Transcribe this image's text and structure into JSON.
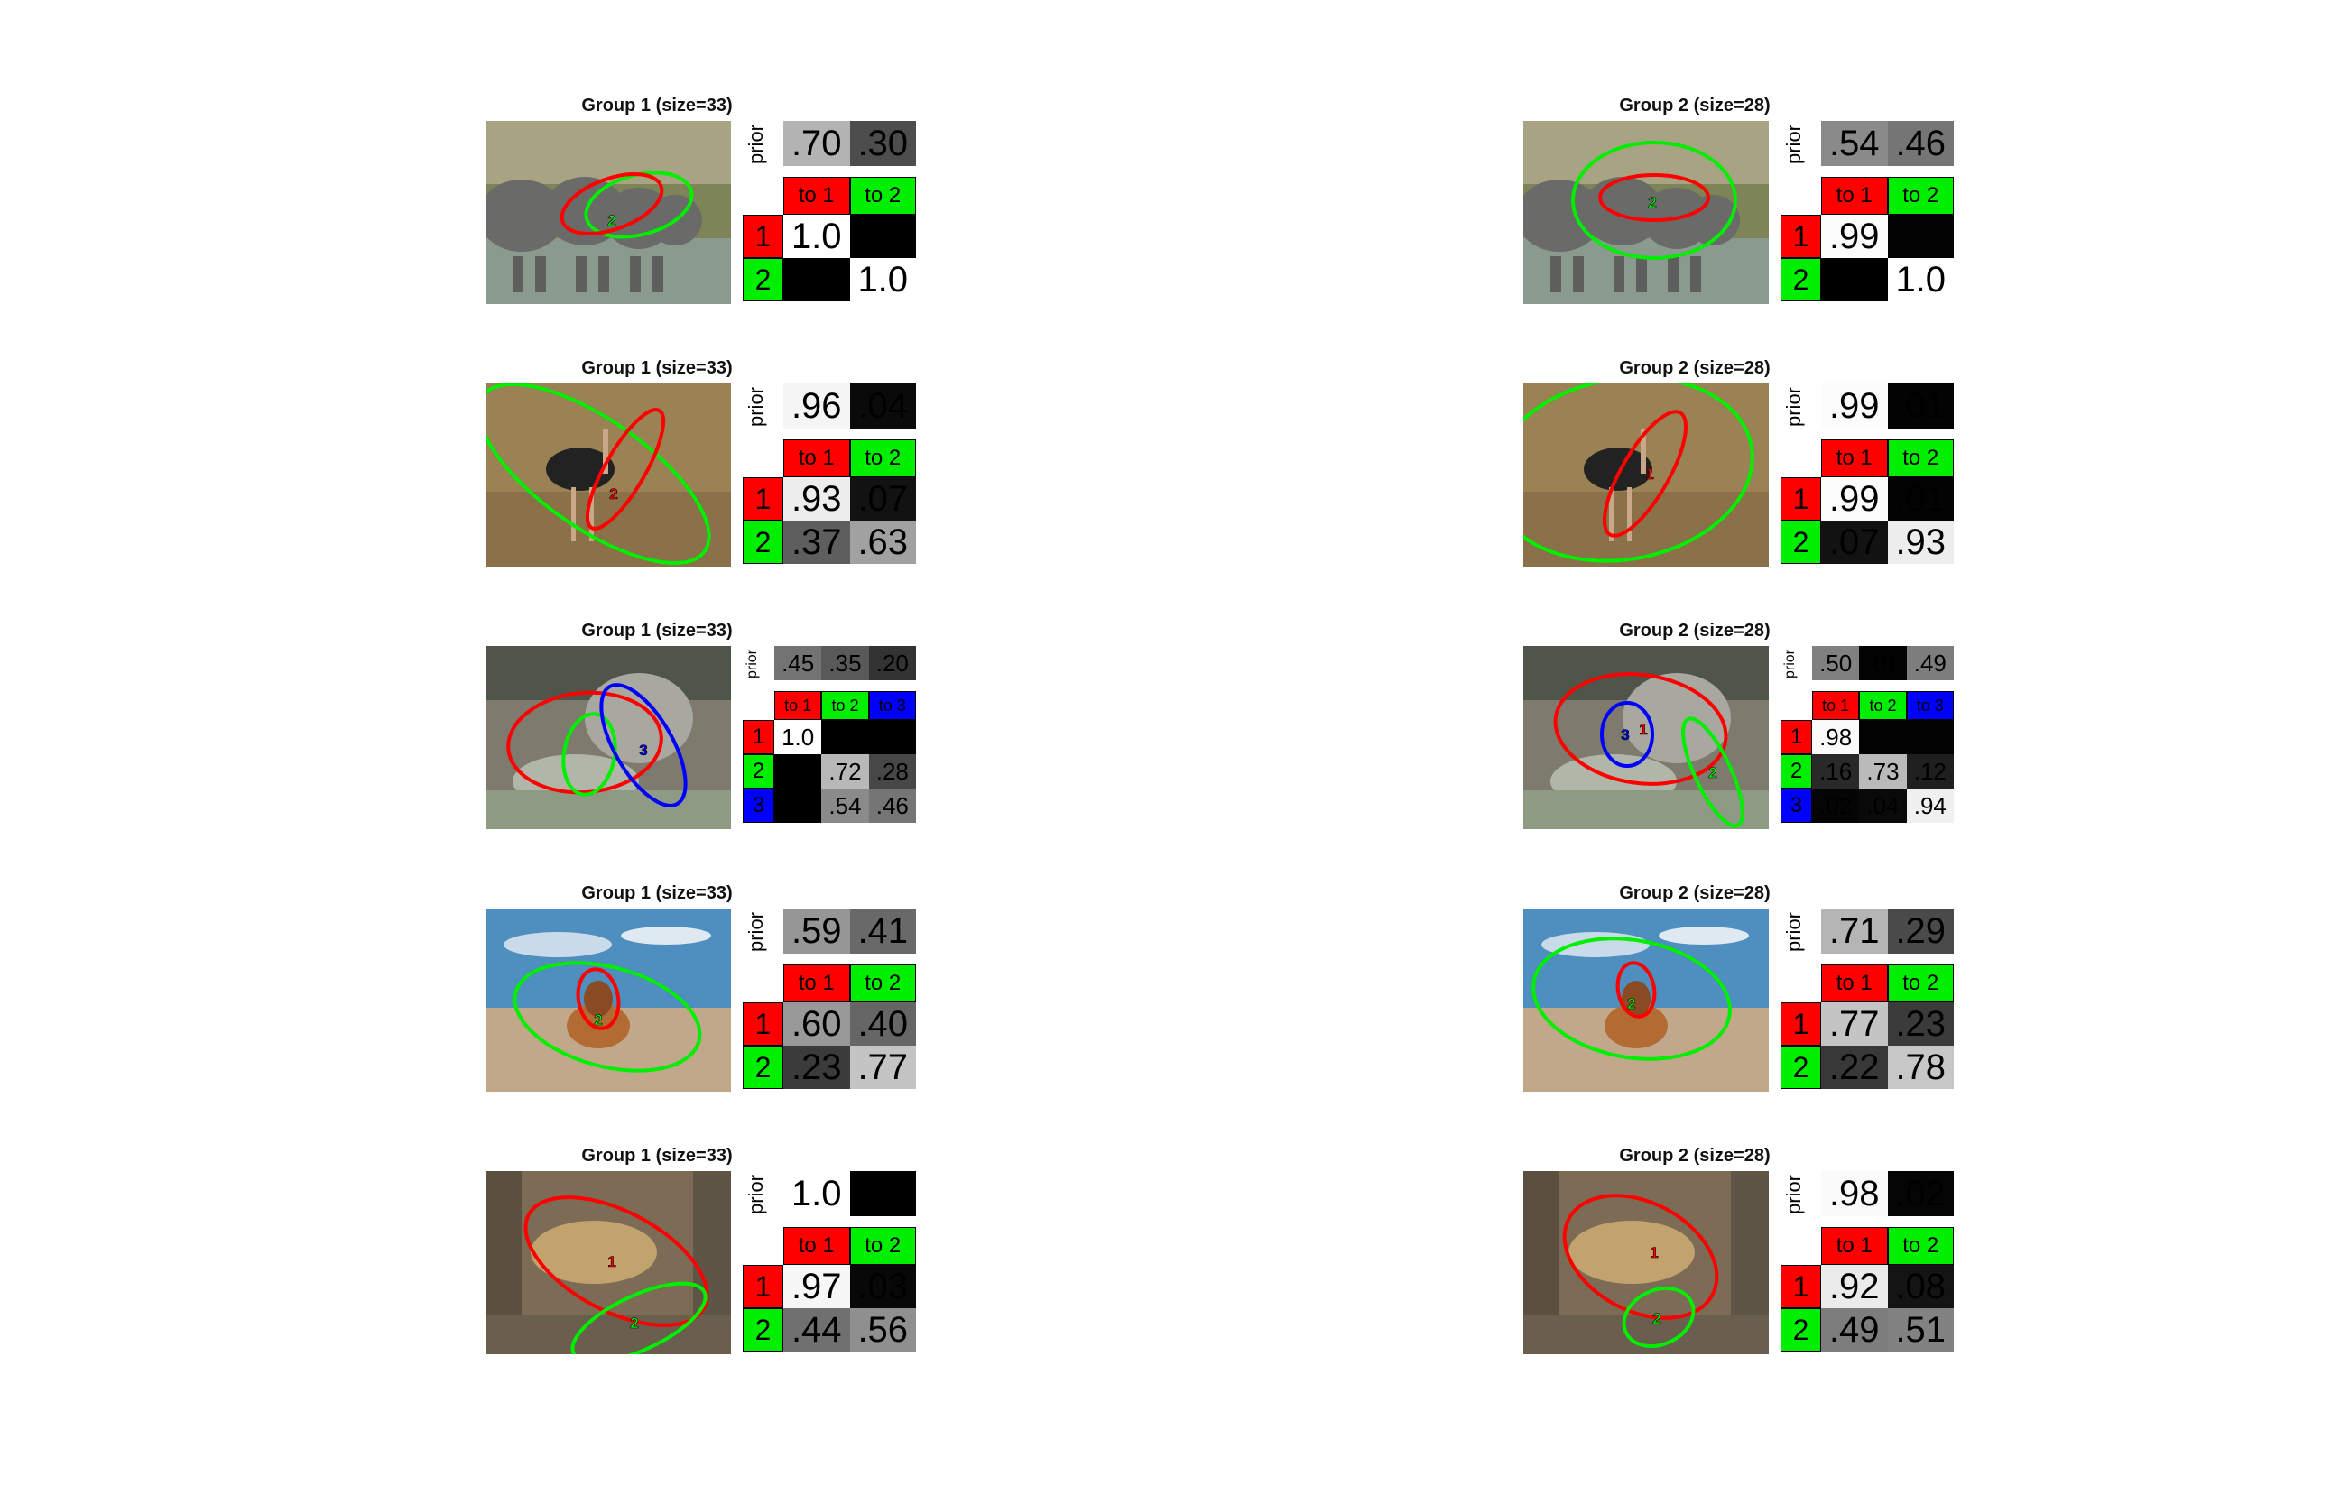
{
  "colors": {
    "state1": "#ff0000",
    "state2": "#00ee00",
    "state3": "#0000ff"
  },
  "row_labels": {
    "prior": "prior",
    "to": [
      "to 1",
      "to 2",
      "to 3"
    ],
    "idx": [
      "1",
      "2",
      "3"
    ]
  },
  "groups": [
    {
      "title": "Group 1 (size=33)",
      "panels": [
        {
          "image": "elephants",
          "n": 2,
          "prior": [
            ".70",
            ".30"
          ],
          "prior_v": [
            0.7,
            0.3
          ],
          "trans": [
            [
              "1.0",
              ""
            ],
            [
              "",
              "1.0"
            ]
          ],
          "trans_v": [
            [
              1.0,
              0.0
            ],
            [
              0.0,
              1.0
            ]
          ]
        },
        {
          "image": "ostrich",
          "n": 2,
          "prior": [
            ".96",
            ".04"
          ],
          "prior_v": [
            0.96,
            0.04
          ],
          "trans": [
            [
              ".93",
              ".07"
            ],
            [
              ".37",
              ".63"
            ]
          ],
          "trans_v": [
            [
              0.93,
              0.07
            ],
            [
              0.37,
              0.63
            ]
          ]
        },
        {
          "image": "armadillo",
          "n": 3,
          "prior": [
            ".45",
            ".35",
            ".20"
          ],
          "prior_v": [
            0.45,
            0.35,
            0.2
          ],
          "trans": [
            [
              "1.0",
              "",
              ""
            ],
            [
              "",
              ".72",
              ".28"
            ],
            [
              "",
              ".54",
              ".46"
            ]
          ],
          "trans_v": [
            [
              1.0,
              0.0,
              0.0
            ],
            [
              0.0,
              0.72,
              0.28
            ],
            [
              0.0,
              0.54,
              0.46
            ]
          ]
        },
        {
          "image": "dog",
          "n": 2,
          "prior": [
            ".59",
            ".41"
          ],
          "prior_v": [
            0.59,
            0.41
          ],
          "trans": [
            [
              ".60",
              ".40"
            ],
            [
              ".23",
              ".77"
            ]
          ],
          "trans_v": [
            [
              0.6,
              0.4
            ],
            [
              0.23,
              0.77
            ]
          ]
        },
        {
          "image": "leopard",
          "n": 2,
          "prior": [
            "1.0",
            ""
          ],
          "prior_v": [
            1.0,
            0.0
          ],
          "trans": [
            [
              ".97",
              ".03"
            ],
            [
              ".44",
              ".56"
            ]
          ],
          "trans_v": [
            [
              0.97,
              0.03
            ],
            [
              0.44,
              0.56
            ]
          ]
        }
      ]
    },
    {
      "title": "Group 2 (size=28)",
      "panels": [
        {
          "image": "elephants",
          "n": 2,
          "prior": [
            ".54",
            ".46"
          ],
          "prior_v": [
            0.54,
            0.46
          ],
          "trans": [
            [
              ".99",
              ""
            ],
            [
              "",
              "1.0"
            ]
          ],
          "trans_v": [
            [
              0.99,
              0.01
            ],
            [
              0.0,
              1.0
            ]
          ]
        },
        {
          "image": "ostrich",
          "n": 2,
          "prior": [
            ".99",
            ".01"
          ],
          "prior_v": [
            0.99,
            0.01
          ],
          "trans": [
            [
              ".99",
              ".01"
            ],
            [
              ".07",
              ".93"
            ]
          ],
          "trans_v": [
            [
              0.99,
              0.01
            ],
            [
              0.07,
              0.93
            ]
          ]
        },
        {
          "image": "armadillo",
          "n": 3,
          "prior": [
            ".50",
            ".01",
            ".49"
          ],
          "prior_v": [
            0.5,
            0.01,
            0.49
          ],
          "trans": [
            [
              ".98",
              "",
              ""
            ],
            [
              ".16",
              ".73",
              ".12"
            ],
            [
              ".02",
              ".04",
              ".94"
            ]
          ],
          "trans_v": [
            [
              0.98,
              0.01,
              0.01
            ],
            [
              0.16,
              0.73,
              0.12
            ],
            [
              0.02,
              0.04,
              0.94
            ]
          ]
        },
        {
          "image": "dog",
          "n": 2,
          "prior": [
            ".71",
            ".29"
          ],
          "prior_v": [
            0.71,
            0.29
          ],
          "trans": [
            [
              ".77",
              ".23"
            ],
            [
              ".22",
              ".78"
            ]
          ],
          "trans_v": [
            [
              0.77,
              0.23
            ],
            [
              0.22,
              0.78
            ]
          ]
        },
        {
          "image": "leopard",
          "n": 2,
          "prior": [
            ".98",
            ".02"
          ],
          "prior_v": [
            0.98,
            0.02
          ],
          "trans": [
            [
              ".92",
              ".08"
            ],
            [
              ".49",
              ".51"
            ]
          ],
          "trans_v": [
            [
              0.92,
              0.08
            ],
            [
              0.49,
              0.51
            ]
          ]
        }
      ]
    }
  ]
}
